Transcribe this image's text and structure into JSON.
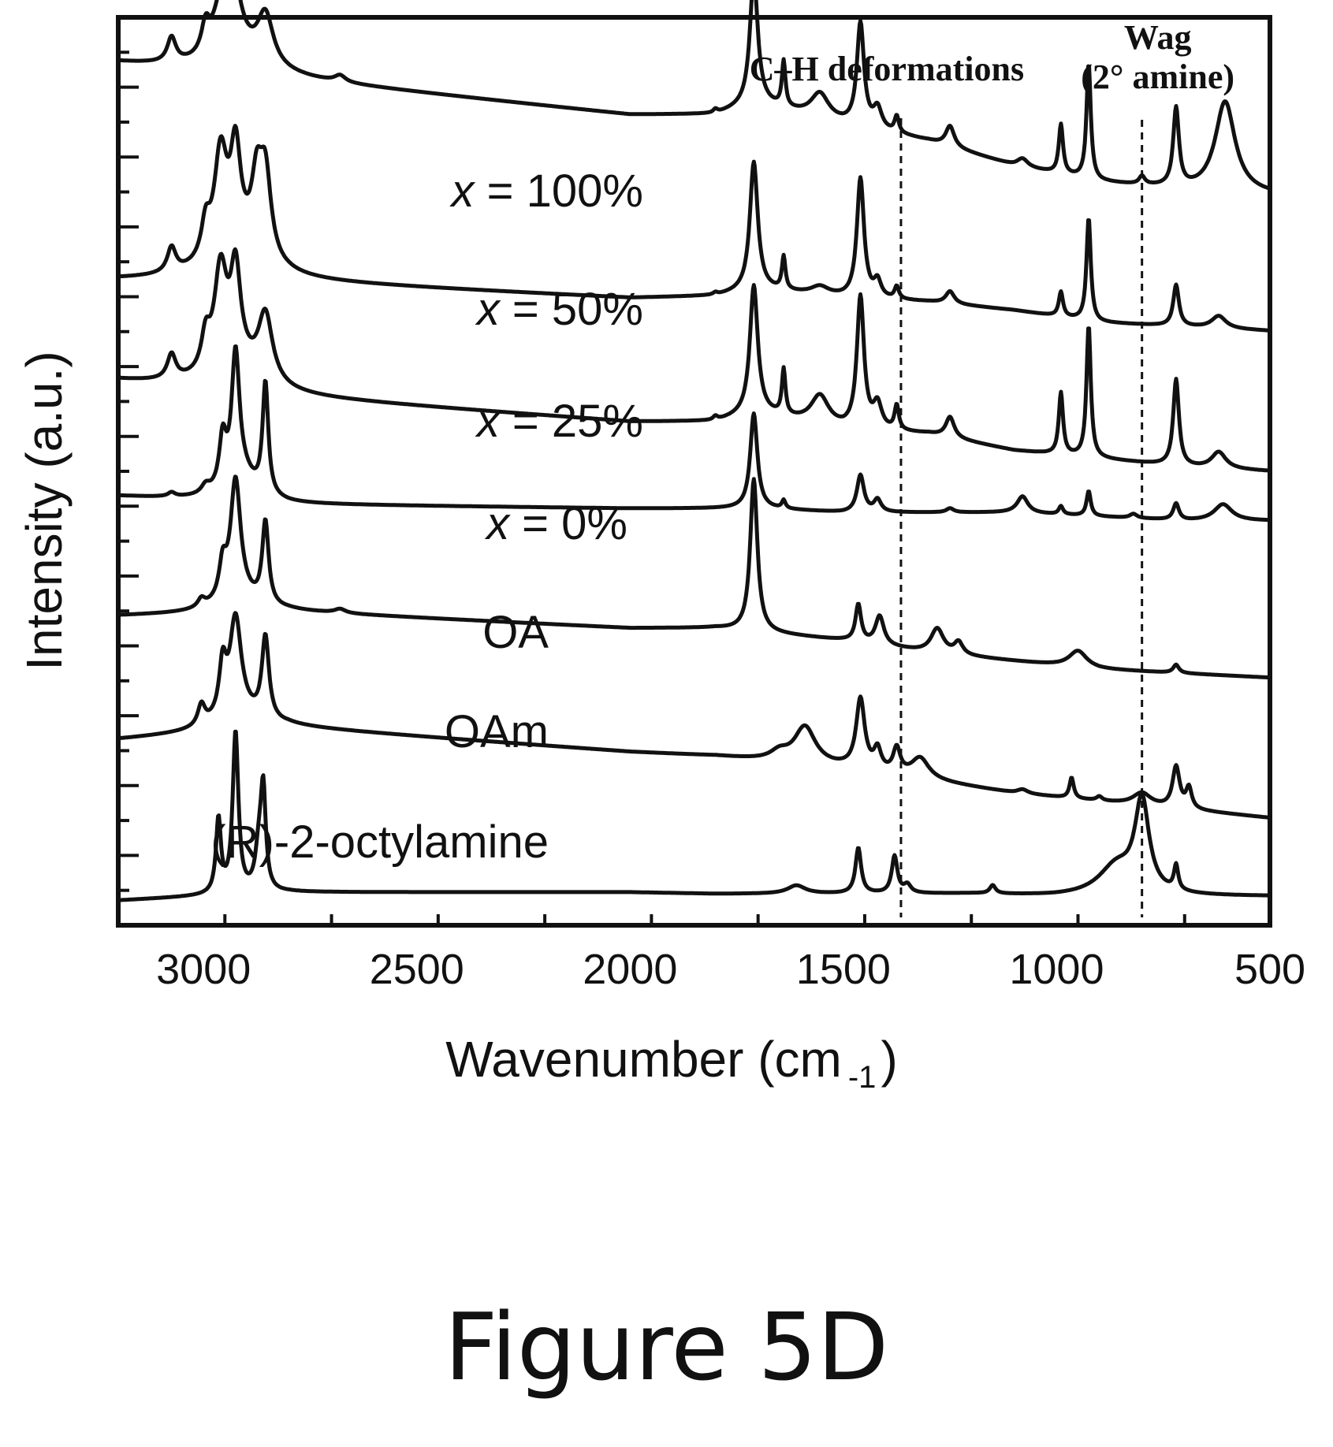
{
  "figure": {
    "caption": "Figure 5D"
  },
  "chart_data": {
    "type": "line",
    "title": "",
    "xlabel": "Wavenumber (cm",
    "xlabel_superscript": "-1",
    "xlabel_close": ")",
    "ylabel": "Intensity (a.u.)",
    "xlim": [
      3200,
      500
    ],
    "x_reversed": true,
    "ylim": [
      0,
      11
    ],
    "x_ticks": [
      3000,
      2500,
      2000,
      1500,
      1000,
      500
    ],
    "x_tick_labels": [
      "3000",
      "2500",
      "2000",
      "1500",
      "1000",
      "500"
    ],
    "y_tick_count": 27,
    "grid": false,
    "legend": "none",
    "line_color": "#111111",
    "reference_lines": [
      {
        "x": 1365,
        "style": "dashed",
        "label_lines": [
          "C–H deformations"
        ]
      },
      {
        "x": 800,
        "style": "dashed",
        "label_lines": [
          "Wag",
          "(2° amine)"
        ]
      }
    ],
    "series": [
      {
        "name": "x = 100%",
        "name_prefix": "x",
        "name_suffix": " = 100%",
        "baseline": [
          [
            3200,
            10.45
          ],
          [
            2800,
            10.25
          ],
          [
            2000,
            9.82
          ],
          [
            1800,
            9.82
          ],
          [
            1700,
            9.95
          ],
          [
            1500,
            9.7
          ],
          [
            1300,
            9.5
          ],
          [
            1100,
            9.2
          ],
          [
            900,
            9.0
          ],
          [
            700,
            8.9
          ],
          [
            500,
            8.85
          ]
        ],
        "peaks": [
          [
            3075,
            0.3,
            12
          ],
          [
            2995,
            0.35,
            12
          ],
          [
            2960,
            0.6,
            20
          ],
          [
            2925,
            0.6,
            18
          ],
          [
            2855,
            0.6,
            22
          ],
          [
            2920,
            0.3,
            70
          ],
          [
            2680,
            0.08,
            15
          ],
          [
            1800,
            0.05,
            6
          ],
          [
            1710,
            1.55,
            11
          ],
          [
            1640,
            0.55,
            5
          ],
          [
            1555,
            0.3,
            25
          ],
          [
            1460,
            1.25,
            10
          ],
          [
            1420,
            0.25,
            12
          ],
          [
            1375,
            0.2,
            6
          ],
          [
            1250,
            0.25,
            12
          ],
          [
            1080,
            0.1,
            15
          ],
          [
            990,
            0.6,
            6
          ],
          [
            925,
            1.4,
            6
          ],
          [
            800,
            0.1,
            8
          ],
          [
            720,
            0.95,
            8
          ],
          [
            605,
            1.1,
            28
          ]
        ]
      },
      {
        "name": "x = 50%",
        "name_prefix": "x",
        "name_suffix": " = 50%",
        "baseline": [
          [
            3200,
            7.82
          ],
          [
            2800,
            7.8
          ],
          [
            2000,
            7.6
          ],
          [
            1800,
            7.62
          ],
          [
            1700,
            7.7
          ],
          [
            1500,
            7.6
          ],
          [
            1300,
            7.55
          ],
          [
            1100,
            7.45
          ],
          [
            900,
            7.3
          ],
          [
            700,
            7.25
          ],
          [
            500,
            7.2
          ]
        ],
        "peaks": [
          [
            3075,
            0.3,
            12
          ],
          [
            2995,
            0.4,
            12
          ],
          [
            2960,
            1.2,
            18
          ],
          [
            2925,
            1.1,
            14
          ],
          [
            2875,
            0.8,
            15
          ],
          [
            2855,
            1.0,
            16
          ],
          [
            2920,
            0.4,
            70
          ],
          [
            1800,
            0.03,
            6
          ],
          [
            1710,
            1.55,
            11
          ],
          [
            1640,
            0.4,
            5
          ],
          [
            1555,
            0.1,
            25
          ],
          [
            1460,
            1.45,
            10
          ],
          [
            1420,
            0.2,
            10
          ],
          [
            1375,
            0.15,
            6
          ],
          [
            1250,
            0.15,
            12
          ],
          [
            990,
            0.3,
            6
          ],
          [
            925,
            1.25,
            6
          ],
          [
            720,
            0.5,
            8
          ],
          [
            620,
            0.15,
            20
          ]
        ]
      },
      {
        "name": "x = 25%",
        "name_prefix": "x",
        "name_suffix": " = 25%",
        "baseline": [
          [
            3200,
            6.6
          ],
          [
            2800,
            6.4
          ],
          [
            2000,
            6.1
          ],
          [
            1800,
            6.1
          ],
          [
            1700,
            6.2
          ],
          [
            1500,
            6.0
          ],
          [
            1300,
            5.95
          ],
          [
            1100,
            5.75
          ],
          [
            900,
            5.65
          ],
          [
            700,
            5.55
          ],
          [
            500,
            5.5
          ]
        ],
        "peaks": [
          [
            3075,
            0.3,
            12
          ],
          [
            2995,
            0.4,
            12
          ],
          [
            2960,
            1.2,
            18
          ],
          [
            2925,
            1.1,
            14
          ],
          [
            2855,
            0.8,
            20
          ],
          [
            2920,
            0.3,
            70
          ],
          [
            1800,
            0.05,
            6
          ],
          [
            1710,
            1.55,
            11
          ],
          [
            1640,
            0.55,
            5
          ],
          [
            1555,
            0.35,
            25
          ],
          [
            1460,
            1.6,
            10
          ],
          [
            1420,
            0.3,
            12
          ],
          [
            1375,
            0.3,
            6
          ],
          [
            1250,
            0.25,
            12
          ],
          [
            990,
            0.75,
            6
          ],
          [
            925,
            1.6,
            6
          ],
          [
            720,
            1.05,
            8
          ],
          [
            620,
            0.2,
            20
          ]
        ]
      },
      {
        "name": "x = 0%",
        "name_prefix": "x",
        "name_suffix": " = 0%",
        "baseline": [
          [
            3200,
            5.2
          ],
          [
            2800,
            5.1
          ],
          [
            2000,
            5.05
          ],
          [
            1800,
            5.05
          ],
          [
            1700,
            5.05
          ],
          [
            1500,
            5.0
          ],
          [
            1300,
            5.0
          ],
          [
            1100,
            5.0
          ],
          [
            900,
            4.95
          ],
          [
            700,
            4.9
          ],
          [
            500,
            4.9
          ]
        ],
        "peaks": [
          [
            3075,
            0.05,
            10
          ],
          [
            2995,
            0.1,
            12
          ],
          [
            2955,
            0.6,
            10
          ],
          [
            2925,
            1.55,
            11
          ],
          [
            2855,
            1.35,
            8
          ],
          [
            2910,
            0.3,
            40
          ],
          [
            1710,
            1.15,
            10
          ],
          [
            1640,
            0.1,
            5
          ],
          [
            1460,
            0.45,
            10
          ],
          [
            1420,
            0.15,
            10
          ],
          [
            1250,
            0.05,
            10
          ],
          [
            1080,
            0.2,
            15
          ],
          [
            990,
            0.1,
            6
          ],
          [
            925,
            0.3,
            6
          ],
          [
            820,
            0.05,
            10
          ],
          [
            720,
            0.2,
            8
          ],
          [
            610,
            0.2,
            25
          ]
        ]
      },
      {
        "name": "OA",
        "baseline": [
          [
            3200,
            3.75
          ],
          [
            2800,
            3.8
          ],
          [
            2000,
            3.6
          ],
          [
            1800,
            3.6
          ],
          [
            1700,
            3.55
          ],
          [
            1500,
            3.45
          ],
          [
            1300,
            3.3
          ],
          [
            1100,
            3.2
          ],
          [
            900,
            3.1
          ],
          [
            700,
            3.05
          ],
          [
            500,
            3.0
          ]
        ],
        "peaks": [
          [
            3005,
            0.1,
            10
          ],
          [
            2955,
            0.4,
            10
          ],
          [
            2925,
            1.4,
            14
          ],
          [
            2855,
            1.0,
            9
          ],
          [
            2920,
            0.2,
            50
          ],
          [
            2680,
            0.05,
            15
          ],
          [
            1710,
            1.85,
            10
          ],
          [
            1465,
            0.45,
            8
          ],
          [
            1415,
            0.35,
            12
          ],
          [
            1280,
            0.3,
            18
          ],
          [
            1230,
            0.15,
            12
          ],
          [
            950,
            0.2,
            25
          ],
          [
            720,
            0.1,
            8
          ]
        ]
      },
      {
        "name": "OAm",
        "baseline": [
          [
            3200,
            2.25
          ],
          [
            2800,
            2.4
          ],
          [
            2000,
            2.1
          ],
          [
            1800,
            2.05
          ],
          [
            1700,
            2.0
          ],
          [
            1500,
            1.9
          ],
          [
            1300,
            1.75
          ],
          [
            1100,
            1.6
          ],
          [
            900,
            1.5
          ],
          [
            700,
            1.4
          ],
          [
            500,
            1.3
          ]
        ],
        "peaks": [
          [
            3005,
            0.25,
            10
          ],
          [
            2955,
            0.6,
            10
          ],
          [
            2925,
            1.15,
            16
          ],
          [
            2855,
            1.0,
            10
          ],
          [
            2920,
            0.2,
            60
          ],
          [
            1650,
            0.1,
            25
          ],
          [
            1590,
            0.45,
            30
          ],
          [
            1460,
            0.85,
            12
          ],
          [
            1420,
            0.25,
            10
          ],
          [
            1375,
            0.3,
            10
          ],
          [
            1320,
            0.25,
            25
          ],
          [
            1080,
            0.05,
            15
          ],
          [
            965,
            0.25,
            6
          ],
          [
            900,
            0.05,
            8
          ],
          [
            800,
            0.15,
            25
          ],
          [
            720,
            0.5,
            10
          ],
          [
            690,
            0.25,
            8
          ]
        ]
      },
      {
        "name": "(R)-2-octylamine",
        "baseline": [
          [
            3200,
            0.3
          ],
          [
            2800,
            0.4
          ],
          [
            2000,
            0.4
          ],
          [
            1800,
            0.38
          ],
          [
            1600,
            0.38
          ],
          [
            1400,
            0.38
          ],
          [
            1200,
            0.38
          ],
          [
            1000,
            0.35
          ],
          [
            800,
            0.35
          ],
          [
            600,
            0.35
          ],
          [
            500,
            0.35
          ]
        ],
        "peaks": [
          [
            2965,
            0.9,
            7
          ],
          [
            2925,
            1.95,
            8
          ],
          [
            2870,
            0.5,
            10
          ],
          [
            2860,
            1.15,
            7
          ],
          [
            1610,
            0.1,
            25
          ],
          [
            1465,
            0.55,
            8
          ],
          [
            1380,
            0.45,
            8
          ],
          [
            1350,
            0.1,
            10
          ],
          [
            1150,
            0.1,
            8
          ],
          [
            860,
            0.35,
            50
          ],
          [
            800,
            1.1,
            20
          ],
          [
            720,
            0.3,
            6
          ]
        ]
      }
    ]
  }
}
